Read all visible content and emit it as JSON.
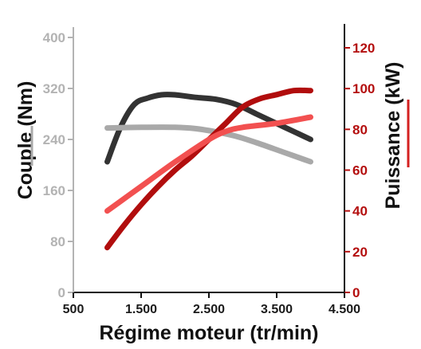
{
  "chart_data": {
    "type": "line",
    "xlabel": "Régime moteur (tr/min)",
    "ylabel_left": "Couple (Nm)",
    "ylabel_right": "Puissance (kW)",
    "x_ticks": [
      {
        "value": 500,
        "label": "500"
      },
      {
        "value": 1500,
        "label": "1.500"
      },
      {
        "value": 2500,
        "label": "2.500"
      },
      {
        "value": 3500,
        "label": "3.500"
      },
      {
        "value": 4500,
        "label": "4.500"
      }
    ],
    "y_left_ticks": [
      {
        "value": 0,
        "label": "0"
      },
      {
        "value": 80,
        "label": "80"
      },
      {
        "value": 160,
        "label": "160"
      },
      {
        "value": 240,
        "label": "240"
      },
      {
        "value": 320,
        "label": "320"
      },
      {
        "value": 400,
        "label": "400"
      }
    ],
    "y_right_ticks": [
      {
        "value": 0,
        "label": "0"
      },
      {
        "value": 20,
        "label": "20"
      },
      {
        "value": 40,
        "label": "40"
      },
      {
        "value": 60,
        "label": "60"
      },
      {
        "value": 80,
        "label": "80"
      },
      {
        "value": 100,
        "label": "100"
      },
      {
        "value": 120,
        "label": "120"
      }
    ],
    "xlim": [
      500,
      4500
    ],
    "ylim_left": [
      0,
      400
    ],
    "ylim_right": [
      0,
      120
    ],
    "grid": false,
    "series": [
      {
        "axis": "left",
        "color": "#333333",
        "x": [
          1000,
          1200,
          1400,
          1600,
          1800,
          2000,
          2300,
          2600,
          2900,
          3200,
          3500,
          3800,
          4000
        ],
        "y": [
          205,
          260,
          295,
          305,
          310,
          310,
          306,
          303,
          295,
          280,
          265,
          250,
          240
        ]
      },
      {
        "axis": "left",
        "color": "#a9a9a9",
        "x": [
          1000,
          1500,
          2000,
          2300,
          2600,
          2900,
          3200,
          3600,
          4000
        ],
        "y": [
          258,
          259,
          259,
          257,
          252,
          245,
          235,
          220,
          205
        ]
      },
      {
        "axis": "right",
        "color": "#b10d0d",
        "x": [
          1000,
          1250,
          1500,
          1750,
          2000,
          2250,
          2500,
          2750,
          3000,
          3250,
          3500,
          3750,
          4000
        ],
        "y": [
          22,
          33,
          43,
          52,
          60,
          67,
          75,
          83,
          91,
          95,
          97,
          99,
          99
        ]
      },
      {
        "axis": "right",
        "color": "#f25050",
        "x": [
          1000,
          1500,
          2000,
          2500,
          2750,
          3000,
          3500,
          4000
        ],
        "y": [
          40,
          52,
          64,
          75,
          79,
          81,
          83,
          86
        ]
      }
    ]
  }
}
